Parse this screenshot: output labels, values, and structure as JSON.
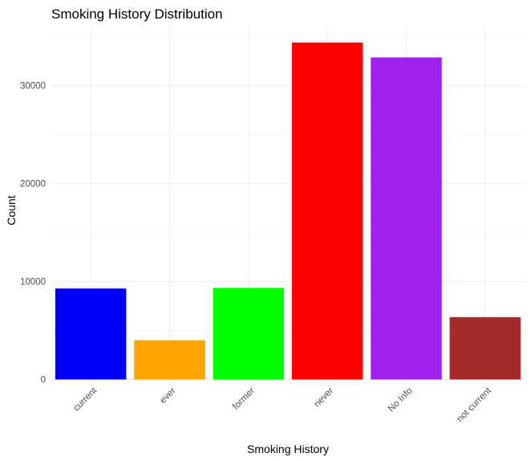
{
  "chart_data": {
    "type": "bar",
    "title": "Smoking History Distribution",
    "xlabel": "Smoking History",
    "ylabel": "Count",
    "categories": [
      "current",
      "ever",
      "former",
      "never",
      "No Info",
      "not current"
    ],
    "values": [
      9286,
      4004,
      9352,
      34398,
      32881,
      6367
    ],
    "colors": [
      "#0000ff",
      "#ffa500",
      "#00ff00",
      "#ff0000",
      "#a020f0",
      "#a52a2a"
    ],
    "ylim": [
      0,
      35000
    ],
    "yticks": [
      0,
      10000,
      20000,
      30000
    ],
    "ytick_labels": [
      "0",
      "10000",
      "20000",
      "30000"
    ],
    "grid": true,
    "legend": "none"
  }
}
